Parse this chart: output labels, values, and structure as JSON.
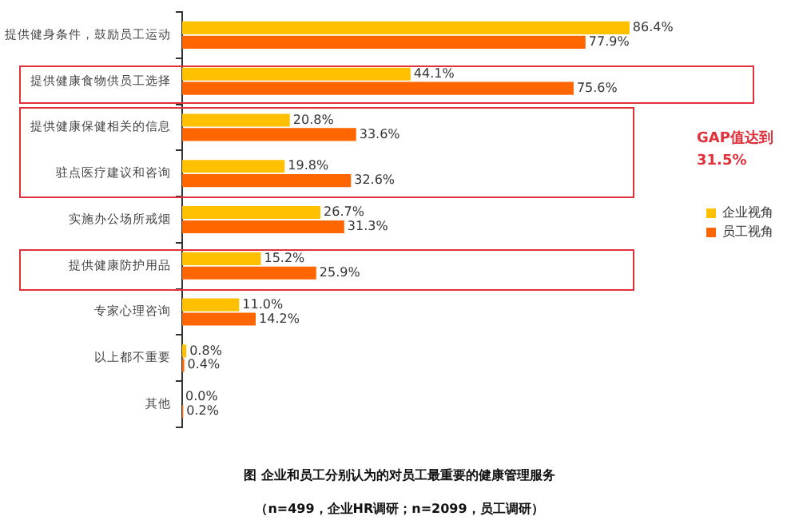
{
  "chart_data": {
    "type": "bar",
    "orientation": "horizontal",
    "categories": [
      "提供健身条件，鼓励员工运动",
      "提供健康食物供员工选择",
      "提供健康保健相关的信息",
      "驻点医疗建议和咨询",
      "实施办公场所戒烟",
      "提供健康防护用品",
      "专家心理咨询",
      "以上都不重要",
      "其他"
    ],
    "series": [
      {
        "name": "企业视角",
        "color": "#ffc000",
        "values": [
          86.4,
          44.1,
          20.8,
          19.8,
          26.7,
          15.2,
          11.0,
          0.8,
          0.0
        ],
        "value_labels": [
          "86.4%",
          "44.1%",
          "20.8%",
          "19.8%",
          "26.7%",
          "15.2%",
          "11.0%",
          "0.8%",
          "0.0%"
        ]
      },
      {
        "name": "员工视角",
        "color": "#ff6600",
        "values": [
          77.9,
          75.6,
          33.6,
          32.6,
          31.3,
          25.9,
          14.2,
          0.4,
          0.2
        ],
        "value_labels": [
          "77.9%",
          "75.6%",
          "33.6%",
          "32.6%",
          "31.3%",
          "25.9%",
          "14.2%",
          "0.4%",
          "0.2%"
        ]
      }
    ],
    "legend": "right",
    "annotations": [
      "GAP值达到31.5%",
      "图 企业和员工分别认为的对员工最重要的健康管理服务",
      "（n=499，企业HR调研；n=2099，员工调研）"
    ]
  }
}
